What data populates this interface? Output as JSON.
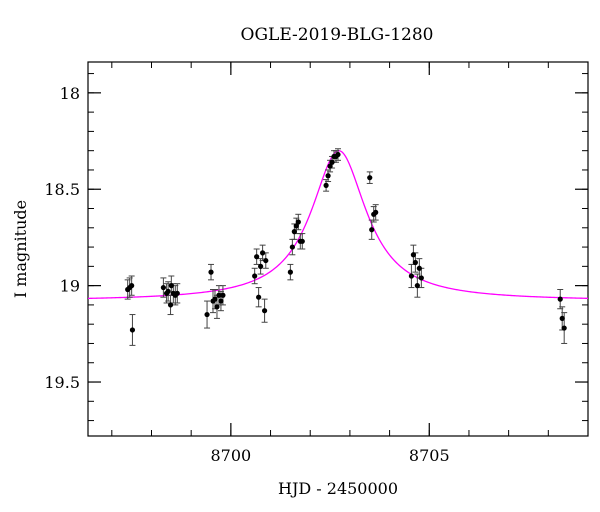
{
  "chart_data": {
    "type": "scatter",
    "title": "OGLE-2019-BLG-1280",
    "xlabel": "HJD - 2450000",
    "ylabel": "I magnitude",
    "xlim": [
      8696.4,
      8709.0
    ],
    "ylim": [
      19.78,
      17.84
    ],
    "y_inverted": true,
    "grid": false,
    "x_ticks": [
      8700,
      8705
    ],
    "y_ticks": [
      18,
      18.5,
      19,
      19.5
    ],
    "x_minor_step": 1,
    "y_minor_step": 0.1,
    "colors": {
      "model": "#ff00ff",
      "points": "#000000",
      "errorbars": "#444444"
    },
    "series": [
      {
        "kind": "points",
        "x": [
          8697.4,
          8697.45,
          8697.5,
          8697.52,
          8698.3,
          8698.38,
          8698.42,
          8698.48,
          8698.5,
          8698.55,
          8698.6,
          8698.65,
          8699.4,
          8699.5,
          8699.55,
          8699.6,
          8699.65,
          8699.7,
          8699.75,
          8699.8,
          8700.6,
          8700.65,
          8700.7,
          8700.75,
          8700.8,
          8700.85,
          8700.88,
          8701.5,
          8701.55,
          8701.6,
          8701.65,
          8701.7,
          8701.75,
          8701.8,
          8702.4,
          8702.45,
          8702.5,
          8702.55,
          8702.6,
          8702.65,
          8702.7,
          8703.5,
          8703.55,
          8703.6,
          8703.65,
          8704.55,
          8704.6,
          8704.65,
          8704.7,
          8704.75,
          8704.8,
          8708.3,
          8708.35,
          8708.4
        ],
        "y": [
          19.02,
          19.01,
          19.0,
          19.23,
          19.01,
          19.04,
          19.03,
          19.1,
          19.0,
          19.04,
          19.05,
          19.04,
          19.15,
          18.93,
          19.08,
          19.07,
          19.11,
          19.05,
          19.08,
          19.05,
          18.95,
          18.85,
          19.06,
          18.9,
          18.83,
          19.13,
          18.87,
          18.93,
          18.8,
          18.72,
          18.69,
          18.67,
          18.77,
          18.77,
          18.48,
          18.43,
          18.38,
          18.36,
          18.33,
          18.33,
          18.32,
          18.44,
          18.71,
          18.63,
          18.62,
          18.95,
          18.84,
          18.88,
          19.0,
          18.91,
          18.96,
          19.07,
          19.17,
          19.22
        ],
        "yerr": [
          0.05,
          0.05,
          0.05,
          0.08,
          0.05,
          0.05,
          0.05,
          0.05,
          0.05,
          0.05,
          0.05,
          0.05,
          0.07,
          0.04,
          0.06,
          0.05,
          0.06,
          0.05,
          0.05,
          0.05,
          0.04,
          0.04,
          0.05,
          0.04,
          0.04,
          0.06,
          0.04,
          0.04,
          0.04,
          0.04,
          0.04,
          0.04,
          0.04,
          0.04,
          0.03,
          0.03,
          0.03,
          0.03,
          0.03,
          0.03,
          0.03,
          0.03,
          0.05,
          0.04,
          0.04,
          0.06,
          0.05,
          0.05,
          0.06,
          0.05,
          0.05,
          0.05,
          0.06,
          0.08
        ]
      },
      {
        "kind": "model",
        "baseline_mag": 19.08,
        "t0": 8702.72,
        "peak_mag": 18.3,
        "width": 0.85
      }
    ]
  }
}
